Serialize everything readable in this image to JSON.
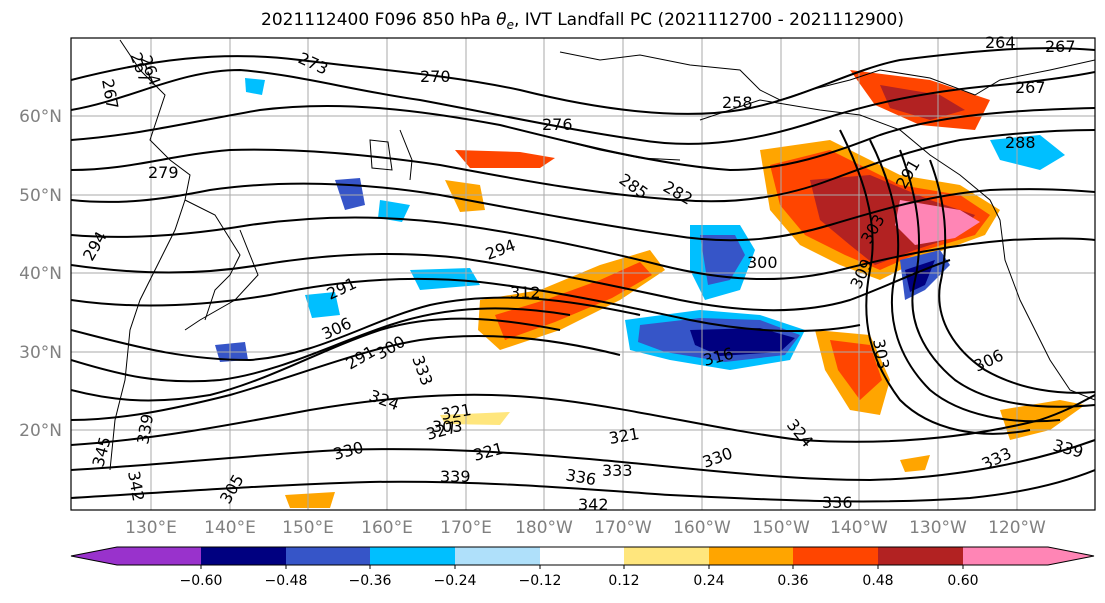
{
  "title": {
    "prefix": "2021112400 F096 850 hPa ",
    "theta": "θ",
    "subscript": "e",
    "suffix": ", IVT Landfall PC (2021112700 - 2021112900)"
  },
  "map": {
    "lat_labels": [
      "60°N",
      "50°N",
      "40°N",
      "30°N",
      "20°N"
    ],
    "lon_labels": [
      "130°E",
      "140°E",
      "150°E",
      "160°E",
      "170°E",
      "180°W",
      "170°W",
      "160°W",
      "150°W",
      "140°W",
      "130°W",
      "120°W"
    ],
    "contour_labels": [
      "267",
      "264",
      "273",
      "270",
      "258",
      "267",
      "264",
      "267",
      "267",
      "276",
      "285",
      "282",
      "291",
      "288",
      "279",
      "294",
      "294",
      "300",
      "303",
      "309",
      "291",
      "312",
      "306",
      "291",
      "300",
      "321",
      "316",
      "303",
      "306",
      "333",
      "324",
      "327",
      "324",
      "339",
      "345",
      "342",
      "303",
      "321",
      "330",
      "321",
      "336",
      "333",
      "330",
      "333",
      "339",
      "339",
      "342",
      "336",
      "305"
    ]
  },
  "colorbar": {
    "colors": [
      "#9932cc",
      "#000080",
      "#3655c8",
      "#00bfff",
      "#afe0fa",
      "#ffffff",
      "#ffffff",
      "#ffe67d",
      "#ffa500",
      "#ff4500",
      "#b22222",
      "#ff85b5"
    ],
    "ticks": [
      "−0.60",
      "−0.48",
      "−0.36",
      "−0.24",
      "−0.12",
      "0.12",
      "0.24",
      "0.36",
      "0.48",
      "0.60"
    ]
  }
}
